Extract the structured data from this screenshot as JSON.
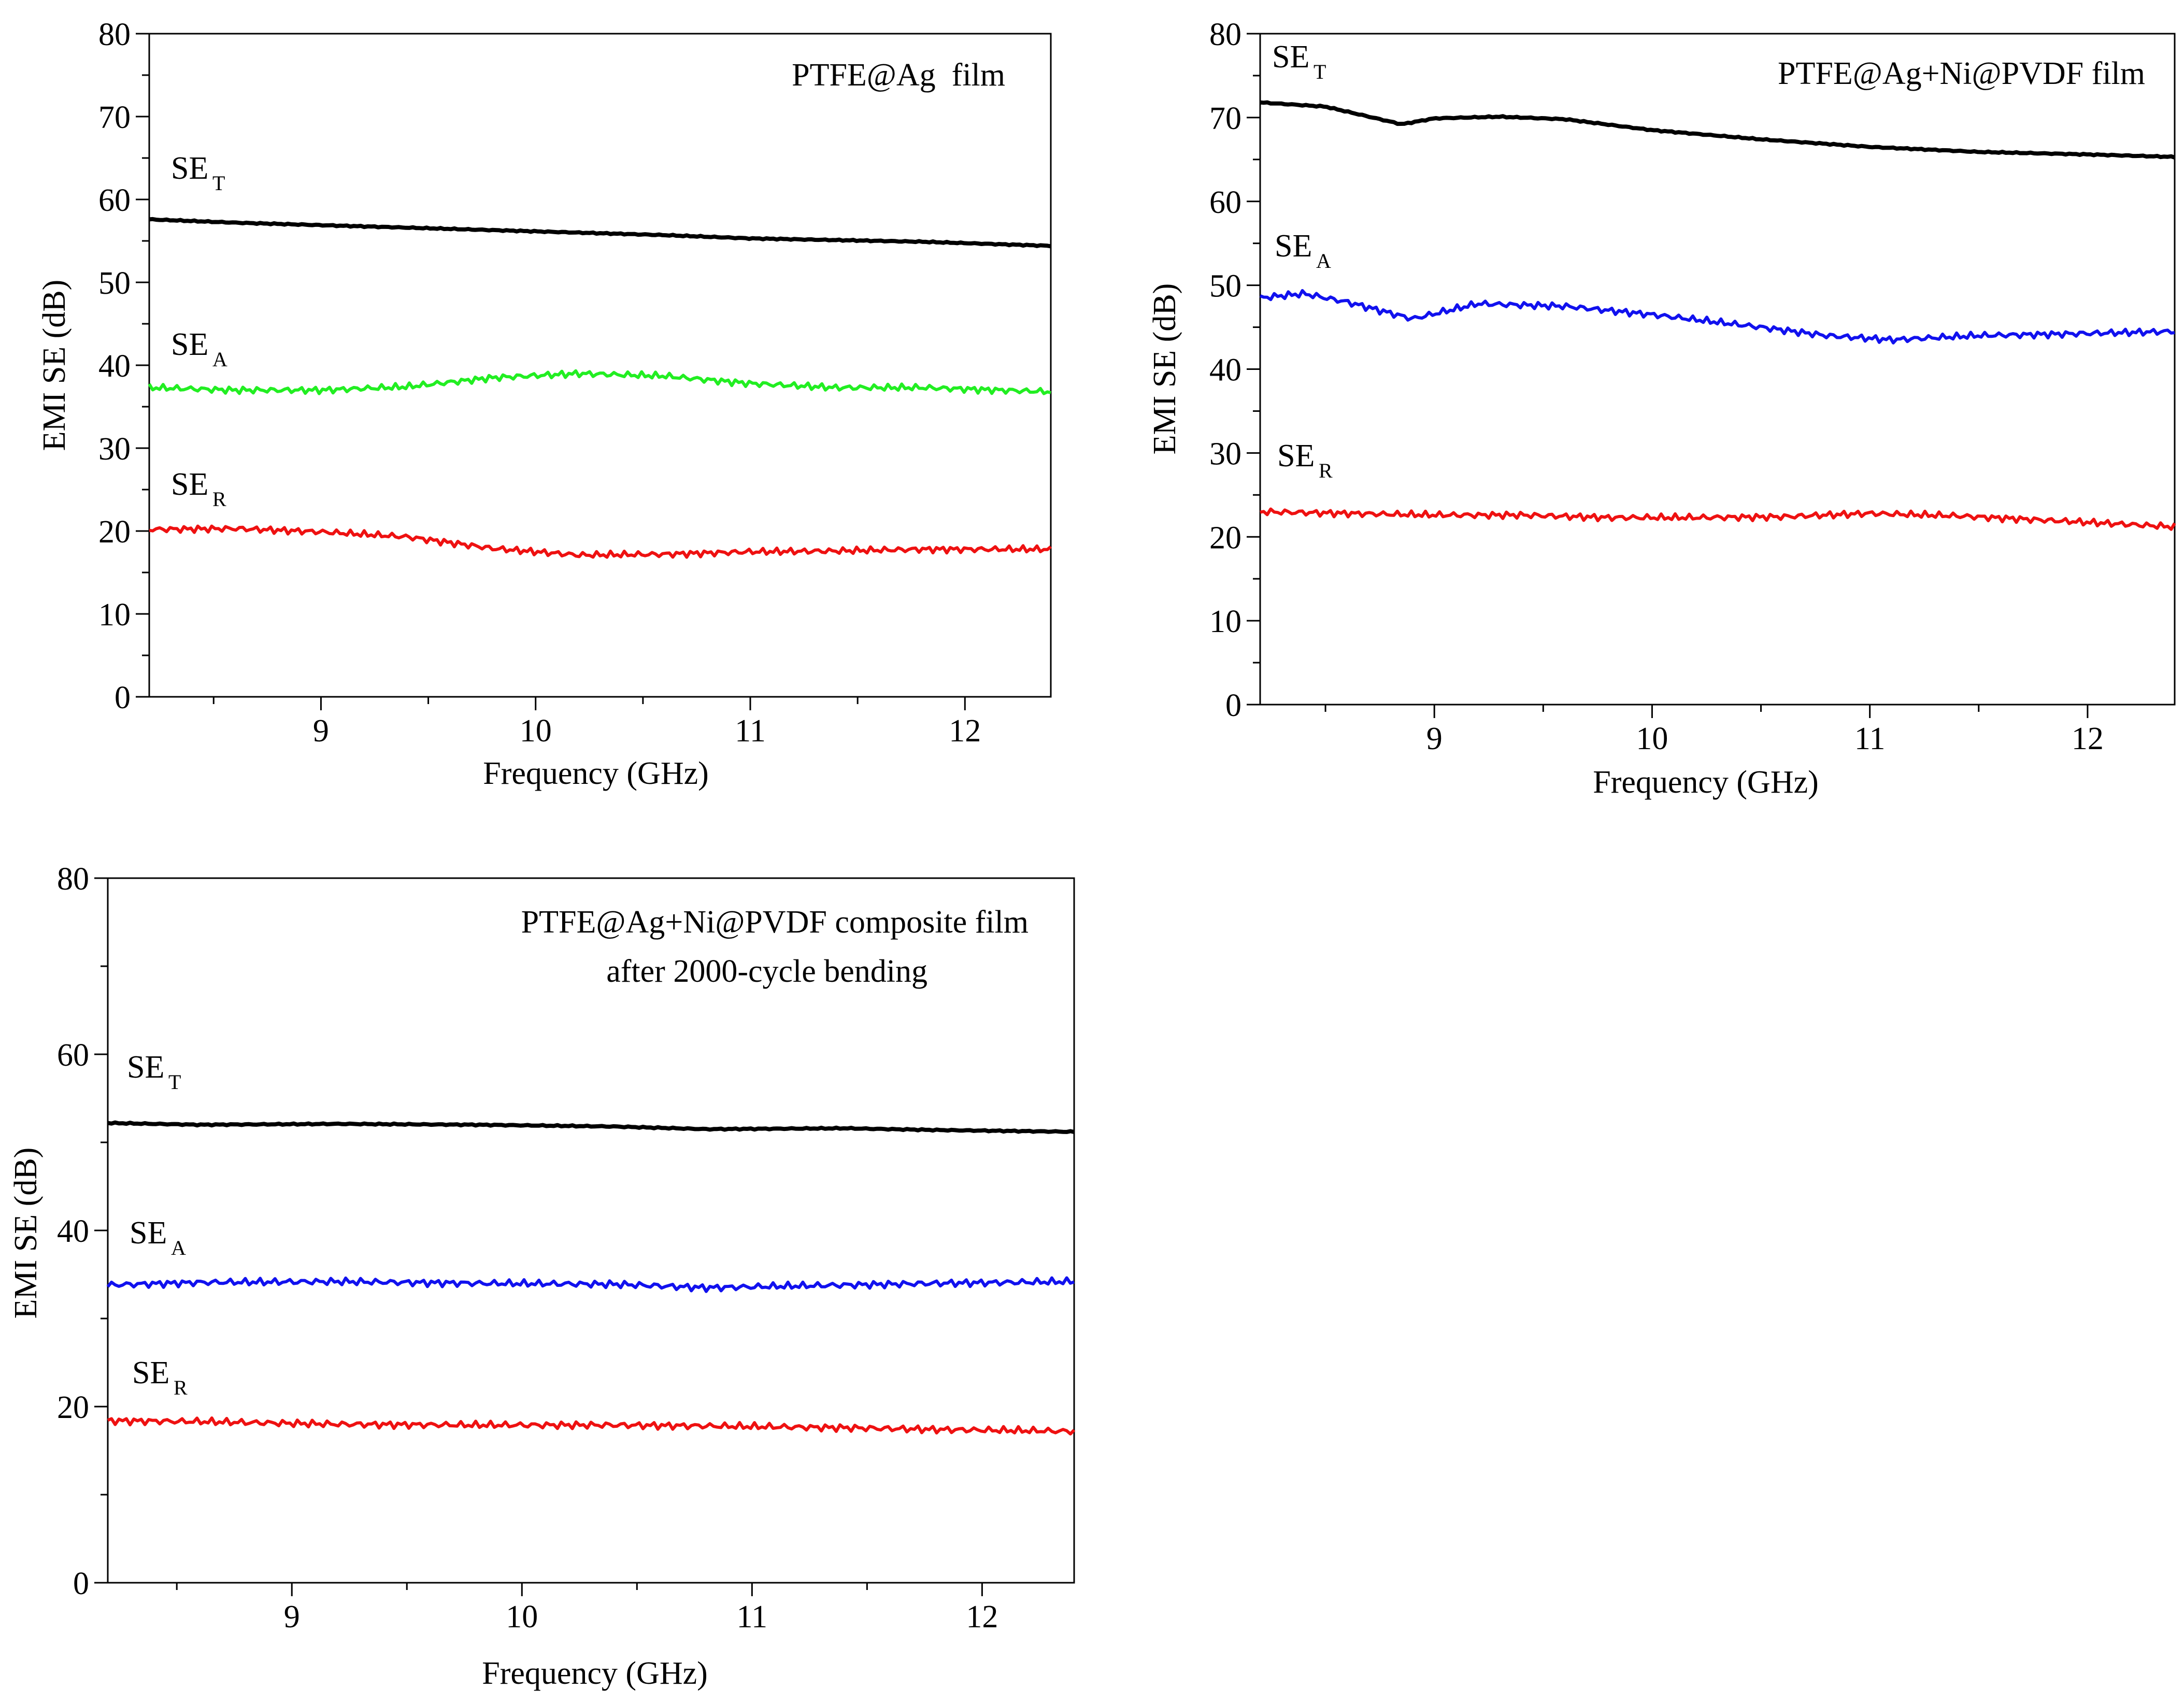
{
  "chart_data": [
    {
      "type": "line",
      "title": "PTFE@Ag  film",
      "xlabel": "Frequency (GHz)",
      "ylabel": "EMI SE (dB)",
      "xlim": [
        8.2,
        12.4
      ],
      "ylim": [
        0,
        80
      ],
      "xticks": [
        "9",
        "10",
        "11",
        "12"
      ],
      "yticks": [
        "0",
        "10",
        "20",
        "30",
        "40",
        "50",
        "60",
        "70",
        "80"
      ],
      "series": [
        {
          "name": "SE",
          "sub": "T",
          "color": "#000000",
          "x": [
            8.2,
            8.6,
            9.0,
            9.4,
            9.8,
            10.2,
            10.6,
            11.0,
            11.4,
            11.8,
            12.4
          ],
          "values": [
            57.6,
            57.2,
            56.9,
            56.6,
            56.3,
            56.0,
            55.7,
            55.3,
            55.1,
            54.9,
            54.4
          ]
        },
        {
          "name": "SE",
          "sub": "A",
          "color": "#22ee22",
          "x": [
            8.2,
            8.6,
            9.0,
            9.4,
            9.8,
            10.2,
            10.6,
            11.0,
            11.4,
            11.8,
            12.4
          ],
          "values": [
            37.3,
            37.0,
            37.0,
            37.4,
            38.5,
            39.0,
            38.7,
            37.8,
            37.3,
            37.3,
            36.8
          ]
        },
        {
          "name": "SE",
          "sub": "R",
          "color": "#ee1111",
          "x": [
            8.2,
            8.6,
            9.0,
            9.4,
            9.8,
            10.2,
            10.6,
            11.0,
            11.4,
            11.8,
            12.4
          ],
          "values": [
            20.2,
            20.3,
            19.9,
            19.3,
            17.9,
            17.1,
            17.2,
            17.5,
            17.6,
            17.8,
            17.8
          ]
        }
      ]
    },
    {
      "type": "line",
      "title": "PTFE@Ag+Ni@PVDF film",
      "xlabel": "Frequency (GHz)",
      "ylabel": "EMI SE (dB)",
      "xlim": [
        8.2,
        12.4
      ],
      "ylim": [
        0,
        80
      ],
      "xticks": [
        "9",
        "10",
        "11",
        "12"
      ],
      "yticks": [
        "0",
        "10",
        "20",
        "30",
        "40",
        "50",
        "60",
        "70",
        "80"
      ],
      "series": [
        {
          "name": "SE",
          "sub": "T",
          "color": "#000000",
          "x": [
            8.2,
            8.5,
            8.85,
            9.0,
            9.3,
            9.6,
            10.0,
            10.5,
            11.0,
            11.5,
            12.0,
            12.4
          ],
          "values": [
            71.8,
            71.3,
            69.2,
            69.9,
            70.1,
            69.8,
            68.5,
            67.4,
            66.5,
            65.9,
            65.6,
            65.3
          ]
        },
        {
          "name": "SE",
          "sub": "A",
          "color": "#1111ee",
          "x": [
            8.2,
            8.4,
            8.6,
            8.9,
            9.2,
            9.6,
            10.0,
            10.5,
            10.8,
            11.1,
            11.5,
            11.9,
            12.4
          ],
          "values": [
            48.5,
            49.0,
            48.0,
            46.0,
            47.8,
            47.5,
            46.5,
            45.0,
            44.0,
            43.5,
            44.0,
            44.2,
            44.5
          ]
        },
        {
          "name": "SE",
          "sub": "R",
          "color": "#ee1111",
          "x": [
            8.2,
            8.6,
            9.0,
            9.4,
            9.8,
            10.2,
            10.6,
            11.0,
            11.4,
            11.8,
            12.4
          ],
          "values": [
            23.0,
            22.8,
            22.6,
            22.6,
            22.3,
            22.3,
            22.4,
            22.8,
            22.5,
            22.0,
            21.2
          ]
        }
      ]
    },
    {
      "type": "line",
      "title": "PTFE@Ag+Ni@PVDF composite film",
      "subtitle": "after 2000-cycle bending",
      "xlabel": "Frequency (GHz)",
      "ylabel": "EMI SE (dB)",
      "xlim": [
        8.2,
        12.4
      ],
      "ylim": [
        0,
        80
      ],
      "xticks": [
        "9",
        "10",
        "11",
        "12"
      ],
      "yticks": [
        "0",
        "20",
        "40",
        "60",
        "80"
      ],
      "series": [
        {
          "name": "SE",
          "sub": "T",
          "color": "#000000",
          "x": [
            8.2,
            8.6,
            9.2,
            9.8,
            10.4,
            10.8,
            11.4,
            11.8,
            12.4
          ],
          "values": [
            52.2,
            52.0,
            52.1,
            52.0,
            51.8,
            51.5,
            51.6,
            51.4,
            51.2
          ]
        },
        {
          "name": "SE",
          "sub": "A",
          "color": "#1111ee",
          "x": [
            8.2,
            8.6,
            9.2,
            9.8,
            10.4,
            10.8,
            11.4,
            11.8,
            12.4
          ],
          "values": [
            33.8,
            34.1,
            34.2,
            34.0,
            33.9,
            33.5,
            33.8,
            34.0,
            34.2
          ]
        },
        {
          "name": "SE",
          "sub": "R",
          "color": "#ee1111",
          "x": [
            8.2,
            8.6,
            9.2,
            9.8,
            10.4,
            10.8,
            11.4,
            11.8,
            12.4
          ],
          "values": [
            18.4,
            18.3,
            18.0,
            17.9,
            17.9,
            17.8,
            17.6,
            17.4,
            17.2
          ]
        }
      ]
    }
  ]
}
